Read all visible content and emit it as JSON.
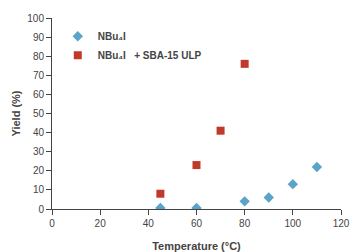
{
  "chart_data": {
    "type": "scatter",
    "xlabel": "Temperature (°C)",
    "ylabel": "Yield (%)",
    "xlim": [
      0,
      120
    ],
    "ylim": [
      0,
      100
    ],
    "xticks": [
      0,
      20,
      40,
      60,
      80,
      100,
      120
    ],
    "yticks": [
      0,
      10,
      20,
      30,
      40,
      50,
      60,
      70,
      80,
      90,
      100
    ],
    "grid": false,
    "legend": "upper left",
    "series": [
      {
        "name": "NBu₄I",
        "color": "#5BA3C9",
        "marker": "diamond",
        "x": [
          45,
          60,
          80,
          90,
          100,
          110
        ],
        "values": [
          0.5,
          0.5,
          4,
          6,
          13,
          22
        ]
      },
      {
        "name": "NBu₄I   + SBA-15 ULP",
        "color": "#C0392B",
        "marker": "square",
        "x": [
          45,
          60,
          70,
          80
        ],
        "values": [
          8,
          23,
          41,
          76
        ]
      }
    ]
  }
}
